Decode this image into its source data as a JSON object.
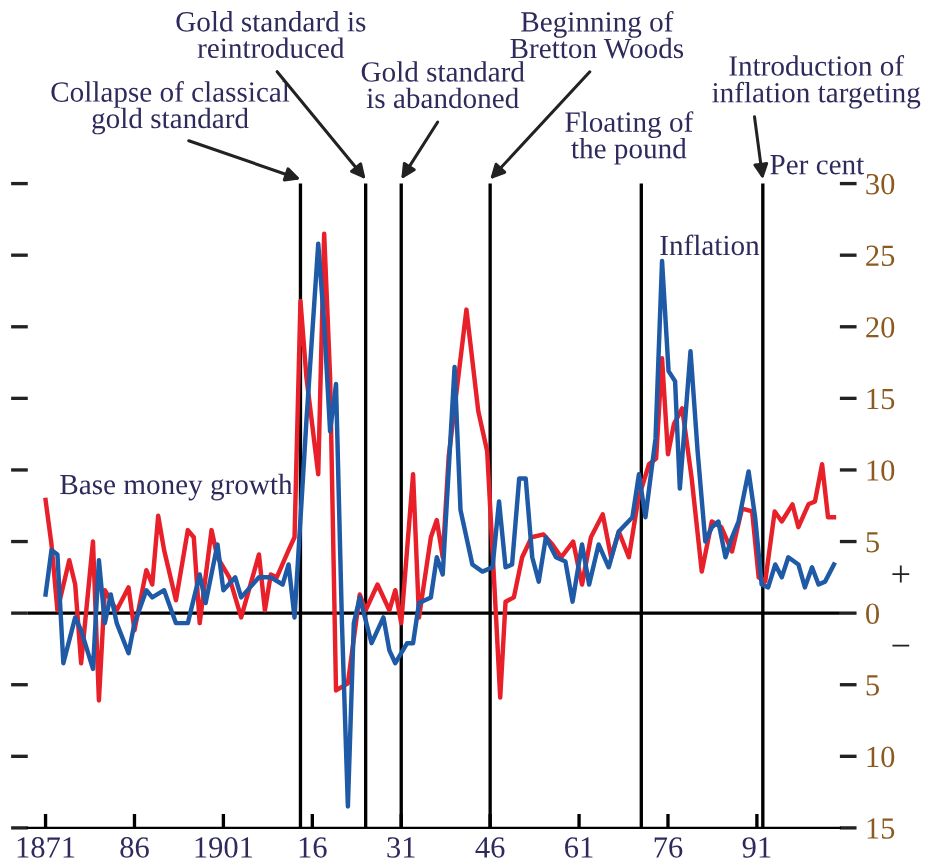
{
  "chart_data": {
    "type": "line",
    "ylabel": "Per cent",
    "xlim": [
      1868,
      2005
    ],
    "ylim": [
      -15,
      30
    ],
    "xticks": [
      {
        "value": 1871,
        "label": "1871"
      },
      {
        "value": 1886,
        "label": "86"
      },
      {
        "value": 1901,
        "label": "1901"
      },
      {
        "value": 1916,
        "label": "16"
      },
      {
        "value": 1931,
        "label": "31"
      },
      {
        "value": 1946,
        "label": "46"
      },
      {
        "value": 1961,
        "label": "61"
      },
      {
        "value": 1976,
        "label": "76"
      },
      {
        "value": 1991,
        "label": "91"
      }
    ],
    "yticks": [
      {
        "value": -15,
        "label": "15"
      },
      {
        "value": -10,
        "label": "10"
      },
      {
        "value": -5,
        "label": "5"
      },
      0,
      5,
      10,
      15,
      20,
      25,
      30
    ],
    "grid": false,
    "legend": false,
    "marker": "none",
    "line_style": "solid",
    "series": [
      {
        "name": "Base money growth",
        "color": "#e8202a",
        "x": [
          1871,
          1872,
          1873,
          1875,
          1876,
          1877,
          1879,
          1880,
          1881,
          1883,
          1885,
          1886,
          1888,
          1889,
          1890,
          1891,
          1893,
          1895,
          1896,
          1897,
          1899,
          1900,
          1902,
          1904,
          1907,
          1908,
          1909,
          1910,
          1912,
          1913,
          1914,
          1915,
          1917,
          1918,
          1919,
          1920,
          1922,
          1924,
          1925,
          1927,
          1929,
          1930,
          1931,
          1933,
          1934,
          1936,
          1937,
          1938,
          1939,
          1942,
          1944,
          1945.5,
          1947,
          1947.7,
          1948.6,
          1950,
          1951.4,
          1953,
          1955,
          1956.5,
          1958,
          1960,
          1961.5,
          1963,
          1965,
          1966.4,
          1967.7,
          1969.4,
          1971,
          1972.8,
          1974,
          1975,
          1976,
          1977,
          1978.4,
          1980,
          1981.7,
          1983.4,
          1985,
          1986.8,
          1988.5,
          1990.2,
          1991.3,
          1992.4,
          1994,
          1995.2,
          1997,
          1998,
          1999.7,
          2000.8,
          2002,
          2003,
          2004
        ],
        "values": [
          7.9,
          4.8,
          0.2,
          3.7,
          2.0,
          -3.5,
          5.0,
          -6.1,
          1.6,
          0.2,
          1.8,
          -1.2,
          3.0,
          2.0,
          6.8,
          4.4,
          0.9,
          5.8,
          5.3,
          -0.7,
          5.8,
          3.9,
          2.5,
          -0.3,
          4.1,
          0.2,
          2.7,
          2.5,
          4.4,
          5.3,
          21.8,
          16.5,
          9.7,
          26.5,
          16.5,
          -5.4,
          -4.9,
          1.3,
          0.2,
          2.0,
          0.2,
          1.6,
          -0.7,
          9.7,
          -0.3,
          5.3,
          6.5,
          3.9,
          10.9,
          21.2,
          14.1,
          11.3,
          -0.3,
          -5.9,
          0.8,
          1.1,
          3.9,
          5.3,
          5.5,
          4.8,
          3.9,
          5.0,
          2.0,
          5.3,
          6.9,
          3.9,
          5.7,
          3.9,
          8.0,
          10.4,
          10.8,
          17.8,
          11.1,
          13.2,
          14.3,
          9.4,
          2.9,
          6.4,
          6.0,
          4.3,
          7.3,
          7.1,
          2.5,
          2.2,
          7.1,
          6.4,
          7.6,
          6.0,
          7.6,
          7.8,
          10.4,
          6.7,
          6.7
        ]
      },
      {
        "name": "Inflation",
        "color": "#1f5aa6",
        "x": [
          1871,
          1872,
          1873,
          1874,
          1876,
          1877,
          1879,
          1880,
          1881,
          1882,
          1883,
          1885,
          1886,
          1888,
          1889,
          1891,
          1893,
          1895,
          1897,
          1898,
          1900,
          1901,
          1903,
          1904,
          1907,
          1909,
          1911,
          1912,
          1913,
          1915,
          1917,
          1918,
          1919,
          1920,
          1921,
          1922,
          1923,
          1924,
          1926,
          1928,
          1929,
          1930,
          1932,
          1933,
          1934,
          1936,
          1937,
          1938,
          1940,
          1941,
          1943,
          1944.7,
          1946.4,
          1947.5,
          1948.6,
          1949.7,
          1950.9,
          1952,
          1953.1,
          1954.2,
          1955.4,
          1957.1,
          1958.7,
          1959.9,
          1961.5,
          1962.7,
          1964.3,
          1966,
          1967.7,
          1970,
          1971.1,
          1972.2,
          1973.9,
          1975,
          1976.1,
          1977.2,
          1978,
          1979.8,
          1981,
          1982.3,
          1983.4,
          1984.5,
          1985.7,
          1986.8,
          1987.9,
          1989.6,
          1990.7,
          1991.8,
          1992.9,
          1994.1,
          1995.2,
          1996.3,
          1998,
          1999.1,
          2000.3,
          2001.4,
          2002.5,
          2004
        ],
        "values": [
          1.3,
          4.4,
          4.1,
          -3.5,
          -0.3,
          -1.2,
          -3.9,
          3.7,
          -0.7,
          1.3,
          -0.7,
          -2.8,
          -0.7,
          1.6,
          1.1,
          1.6,
          -0.7,
          -0.7,
          2.7,
          0.7,
          4.8,
          1.6,
          2.5,
          1.1,
          2.5,
          2.5,
          2.0,
          3.4,
          -0.3,
          13.4,
          25.8,
          20.2,
          12.7,
          16.0,
          -0.7,
          -13.5,
          -0.7,
          1.1,
          -2.1,
          -0.3,
          -2.6,
          -3.5,
          -2.1,
          -2.1,
          0.7,
          1.1,
          3.9,
          2.7,
          17.2,
          7.2,
          3.4,
          2.9,
          3.2,
          7.8,
          3.2,
          3.4,
          9.4,
          9.4,
          3.9,
          2.2,
          5.3,
          3.9,
          3.6,
          0.8,
          4.8,
          2.0,
          4.8,
          3.2,
          5.7,
          6.7,
          9.7,
          6.7,
          12.2,
          24.6,
          16.9,
          16.2,
          8.7,
          18.3,
          11.3,
          5.0,
          6.0,
          6.4,
          3.9,
          5.3,
          6.4,
          9.9,
          6.7,
          2.0,
          1.8,
          3.4,
          2.5,
          3.9,
          3.4,
          1.8,
          3.2,
          2.0,
          2.2,
          3.4
        ]
      }
    ],
    "ref_lines": [
      {
        "axis": "y",
        "value": 0,
        "color": "#000000"
      },
      {
        "axis": "x",
        "value": 1914,
        "label": "Collapse of classical\ngold standard",
        "color": "#000000"
      },
      {
        "axis": "x",
        "value": 1925,
        "label": "Gold standard is\nreintroduced",
        "color": "#000000"
      },
      {
        "axis": "x",
        "value": 1931,
        "label": "Gold standard\nis abandoned",
        "color": "#000000"
      },
      {
        "axis": "x",
        "value": 1946,
        "label": "Beginning of\nBretton Woods",
        "color": "#000000"
      },
      {
        "axis": "x",
        "value": 1971.5,
        "label": "Floating of\nthe pound",
        "color": "#000000"
      },
      {
        "axis": "x",
        "value": 1992,
        "label": "Introduction of\ninflation targeting",
        "color": "#000000"
      }
    ],
    "annotations": [
      "+",
      "−"
    ]
  }
}
